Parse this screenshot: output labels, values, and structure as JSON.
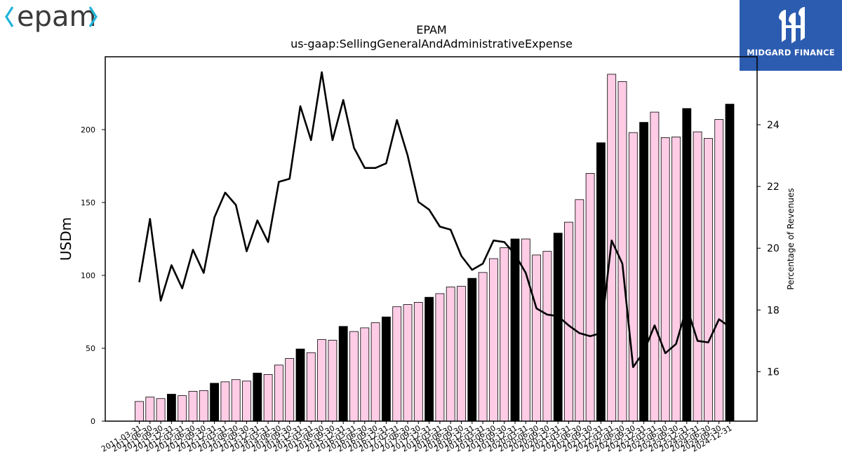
{
  "branding": {
    "left_logo_text": "epam",
    "right_logo_text": "MIDGARD FINANCE",
    "right_logo_bg": "#2c5cb0",
    "left_logo_color": "#3a3a3a",
    "left_logo_accent": "#1fb4d8"
  },
  "chart_data": {
    "type": "bar",
    "title": "EPAM",
    "subtitle": "us-gaap:SellingGeneralAndAdministrativeExpense",
    "ylabel": "USDm",
    "y2label": "Percentage of Revenues",
    "ylim": [
      0,
      250
    ],
    "yticks": [
      0,
      50,
      100,
      150,
      200
    ],
    "y2lim": [
      14.4,
      26.2
    ],
    "y2ticks": [
      16,
      18,
      20,
      22,
      24
    ],
    "bar_color": "#ffcce6",
    "bar_highlight_color": "#000000",
    "line_color": "#000000",
    "grid": false,
    "categories": [
      "2011-03-31",
      "2011-06-30",
      "2011-09-30",
      "2011-12-31",
      "2012-03-31",
      "2012-06-30",
      "2012-09-30",
      "2012-12-31",
      "2013-03-31",
      "2013-06-30",
      "2013-09-30",
      "2013-12-31",
      "2014-03-31",
      "2014-06-30",
      "2014-09-30",
      "2014-12-31",
      "2015-03-31",
      "2015-06-30",
      "2015-09-30",
      "2015-12-31",
      "2016-03-31",
      "2016-06-30",
      "2016-09-30",
      "2016-12-31",
      "2017-03-31",
      "2017-06-30",
      "2017-09-30",
      "2017-12-31",
      "2018-03-31",
      "2018-06-30",
      "2018-09-30",
      "2018-12-31",
      "2019-03-31",
      "2019-06-30",
      "2019-09-30",
      "2019-12-31",
      "2020-03-31",
      "2020-06-30",
      "2020-09-30",
      "2020-12-31",
      "2021-03-31",
      "2021-06-30",
      "2021-09-30",
      "2021-12-31",
      "2022-03-31",
      "2022-06-30",
      "2022-09-30",
      "2022-12-31",
      "2023-03-31",
      "2023-06-30",
      "2023-09-30",
      "2023-12-31",
      "2024-03-31",
      "2024-06-30",
      "2024-09-30",
      "2024-12-31"
    ],
    "series": [
      {
        "kind": "bar",
        "axis": "left",
        "values": [
          13.5,
          16.5,
          15.5,
          18.5,
          17.5,
          20.5,
          21,
          26,
          27,
          28.5,
          27.5,
          33,
          32,
          38.5,
          43,
          49.5,
          47,
          56,
          55.5,
          65,
          61.5,
          64,
          67.5,
          71.5,
          78.5,
          80,
          81.5,
          85,
          87.5,
          92,
          92.5,
          98,
          102,
          111.5,
          119,
          125,
          125,
          114,
          116.5,
          129,
          136.5,
          152,
          170,
          191,
          238,
          233,
          198,
          205,
          212,
          194.5,
          195,
          214.5,
          198.5,
          194,
          207,
          217.5
        ],
        "highlighted": [
          false,
          false,
          false,
          true,
          false,
          false,
          false,
          true,
          false,
          false,
          false,
          true,
          false,
          false,
          false,
          true,
          false,
          false,
          false,
          true,
          false,
          false,
          false,
          true,
          false,
          false,
          false,
          true,
          false,
          false,
          false,
          true,
          false,
          false,
          false,
          true,
          false,
          false,
          false,
          true,
          false,
          false,
          false,
          true,
          false,
          false,
          false,
          true,
          false,
          false,
          false,
          true,
          false,
          false,
          false,
          true
        ]
      },
      {
        "kind": "line",
        "axis": "right",
        "values": [
          18.9,
          20.95,
          18.3,
          19.45,
          18.7,
          19.95,
          19.2,
          21.0,
          21.8,
          21.4,
          19.9,
          20.9,
          20.2,
          22.15,
          22.25,
          24.6,
          23.5,
          25.7,
          23.5,
          24.8,
          23.25,
          22.6,
          22.6,
          22.75,
          24.15,
          23.0,
          21.5,
          21.25,
          20.7,
          20.6,
          19.75,
          19.3,
          19.5,
          20.25,
          20.2,
          19.8,
          19.2,
          18.05,
          17.85,
          17.8,
          17.5,
          17.25,
          17.15,
          17.25,
          20.25,
          19.5,
          16.15,
          16.65,
          17.5,
          16.6,
          16.9,
          18.1,
          17.0,
          16.95,
          17.7,
          17.45
        ]
      }
    ]
  }
}
